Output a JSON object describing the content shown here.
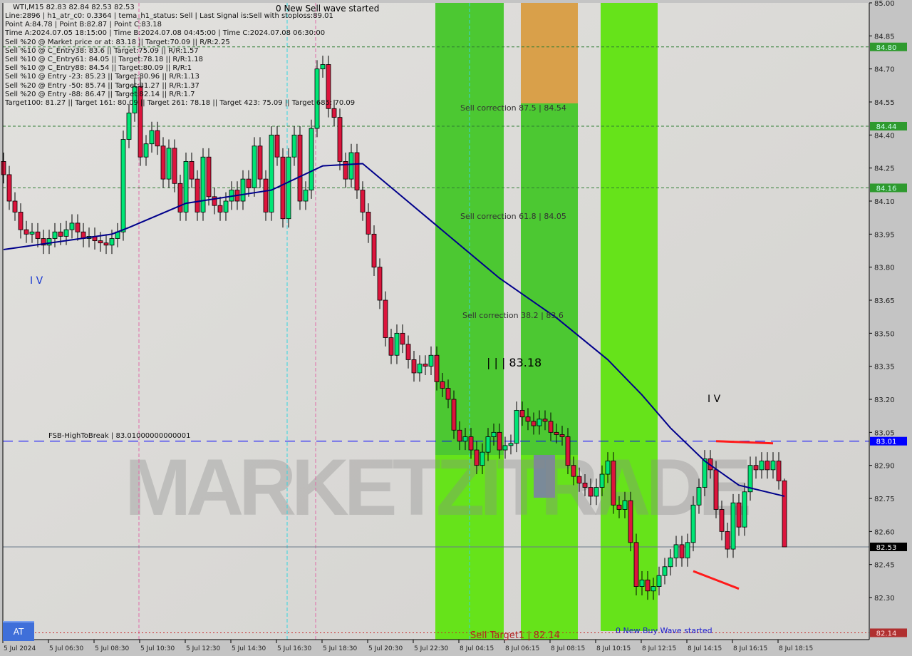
{
  "header": {
    "symbol_line": "WTI,M15  82.83 82.84 82.53 82.53",
    "info_lines": [
      "Line:2896 | h1_atr_c0: 0.3364 | tema_h1_status: Sell | Last Signal is:Sell with stoploss:89.01",
      "Point A:84.78 | Point B:82.87 | Point C:83.18",
      "Time A:2024.07.05 18:15:00 | Time B:2024.07.08 04:45:00 | Time C:2024.07.08 06:30:00",
      "Sell %20 @ Market price or at: 83.18 || Target:70.09 || R/R:2.25",
      "Sell %10 @ C_Entry38: 83.6 || Target:75.09 || R/R:1.57",
      "Sell %10 @ C_Entry61: 84.05 || Target:78.18 || R/R:1.18",
      "Sell %10 @ C_Entry88: 84.54 || Target:80.09 || R/R:1",
      "Sell %10 @ Entry -23: 85.23 || Target:80.96 || R/R:1.13",
      "Sell %20 @ Entry -50: 85.74 || Target:81.27 || R/R:1.37",
      "Sell %20 @ Entry -88: 86.47 || Target:82.14 || R/R:1.7",
      "Target100: 81.27 || Target 161: 80.09 || Target 261: 78.18 || Target 423: 75.09 || Target 685: 70.09"
    ]
  },
  "annotations": {
    "sell_wave": "0 New Sell wave started",
    "buy_wave": "0 New Buy Wave started",
    "fsb": "FSB-HighToBreak | 83.01000000000001",
    "corr875": "Sell correction 87.5 | 84.54",
    "corr618": "Sell correction 61.8 | 84.05",
    "corr382": "Sell correction 38.2 | 83.6",
    "wave3": "| | | 83.18",
    "wave4_left": "I V",
    "wave4_right": "I V",
    "sell_target": "Sell Target1 | 82.14",
    "watermark": "MARKETZITRADE"
  },
  "at_button": "AT",
  "colors": {
    "bull": "#00e676",
    "bear": "#dc143c",
    "ma": "#00008b",
    "zone_dark": "#4cc832",
    "zone_light": "#66e31a",
    "zone_orange": "#d9a04a",
    "background": "#dcdbd8"
  },
  "chart_data": {
    "type": "candlestick",
    "ylim": [
      82.14,
      85.0
    ],
    "y_ticks": [
      "85.00",
      "84.85",
      "84.70",
      "84.55",
      "84.40",
      "84.25",
      "84.10",
      "83.95",
      "83.80",
      "83.65",
      "83.50",
      "83.35",
      "83.20",
      "83.05",
      "82.90",
      "82.75",
      "82.60",
      "82.45",
      "82.30"
    ],
    "x_tick_labels": [
      "5 Jul 2024",
      "5 Jul 06:30",
      "5 Jul 08:30",
      "5 Jul 10:30",
      "5 Jul 12:30",
      "5 Jul 14:30",
      "5 Jul 16:30",
      "5 Jul 18:30",
      "5 Jul 20:30",
      "5 Jul 22:30",
      "8 Jul 04:15",
      "8 Jul 06:15",
      "8 Jul 08:15",
      "8 Jul 10:15",
      "8 Jul 12:15",
      "8 Jul 14:15",
      "8 Jul 16:15",
      "8 Jul 18:15"
    ],
    "first_open": 84.28,
    "close": [
      84.22,
      84.1,
      84.05,
      83.97,
      83.95,
      83.96,
      83.93,
      83.9,
      83.93,
      83.96,
      83.94,
      83.97,
      84.0,
      83.96,
      83.93,
      83.94,
      83.92,
      83.91,
      83.9,
      83.93,
      83.96,
      84.38,
      84.5,
      84.62,
      84.3,
      84.36,
      84.42,
      84.35,
      84.2,
      84.34,
      84.18,
      84.05,
      84.28,
      84.2,
      84.05,
      84.3,
      84.12,
      84.08,
      84.05,
      84.1,
      84.15,
      84.1,
      84.2,
      84.16,
      84.35,
      84.2,
      84.05,
      84.4,
      84.3,
      84.02,
      84.3,
      84.4,
      84.1,
      84.15,
      84.43,
      84.7,
      84.72,
      84.52,
      84.48,
      84.28,
      84.2,
      84.32,
      84.15,
      84.05,
      83.95,
      83.8,
      83.65,
      83.48,
      83.4,
      83.5,
      83.45,
      83.38,
      83.32,
      83.36,
      83.35,
      83.4,
      83.28,
      83.25,
      83.2,
      83.06,
      83.01,
      83.03,
      82.97,
      82.9,
      82.96,
      83.03,
      83.05,
      82.97,
      82.99,
      83.0,
      83.15,
      83.12,
      83.1,
      83.08,
      83.11,
      83.1,
      83.05,
      83.04,
      83.03,
      82.9,
      82.85,
      82.82,
      82.8,
      82.76,
      82.8,
      82.86,
      82.92,
      82.72,
      82.7,
      82.74,
      82.55,
      82.35,
      82.38,
      82.33,
      82.35,
      82.4,
      82.44,
      82.48,
      82.54,
      82.48,
      82.55,
      82.72,
      82.8,
      82.93,
      82.88,
      82.7,
      82.6,
      82.52,
      82.73,
      82.62,
      82.78,
      82.9,
      82.88,
      82.92,
      82.88,
      82.92,
      82.83,
      82.53
    ],
    "last_candle": {
      "open": 82.83,
      "high": 82.84,
      "low": 82.53,
      "close": 82.53
    },
    "moving_average": [
      [
        0,
        83.88
      ],
      [
        19,
        83.95
      ],
      [
        22,
        83.98
      ],
      [
        32,
        84.09
      ],
      [
        47,
        84.15
      ],
      [
        56,
        84.26
      ],
      [
        63,
        84.27
      ],
      [
        69,
        84.14
      ],
      [
        75,
        84.01
      ],
      [
        87,
        83.75
      ],
      [
        97,
        83.57
      ],
      [
        106,
        83.38
      ],
      [
        112,
        83.22
      ],
      [
        117,
        83.07
      ],
      [
        123,
        82.92
      ],
      [
        129,
        82.81
      ],
      [
        137,
        82.76
      ]
    ],
    "levels": [
      {
        "price": 84.8,
        "label": "84.80",
        "style": "green-dashed"
      },
      {
        "price": 84.44,
        "label": "84.44",
        "style": "green-dashed"
      },
      {
        "price": 84.16,
        "label": "84.16",
        "style": "green-dashed"
      },
      {
        "price": 83.01,
        "label": "83.01",
        "style": "blue-dashed"
      },
      {
        "price": 82.53,
        "label": "82.53",
        "style": "current-price"
      },
      {
        "price": 82.14,
        "label": "82.14",
        "style": "red-dotted"
      }
    ],
    "trendlines": [
      [
        125,
        83.01,
        135,
        83.0
      ],
      [
        121,
        82.42,
        129,
        82.34
      ]
    ]
  }
}
